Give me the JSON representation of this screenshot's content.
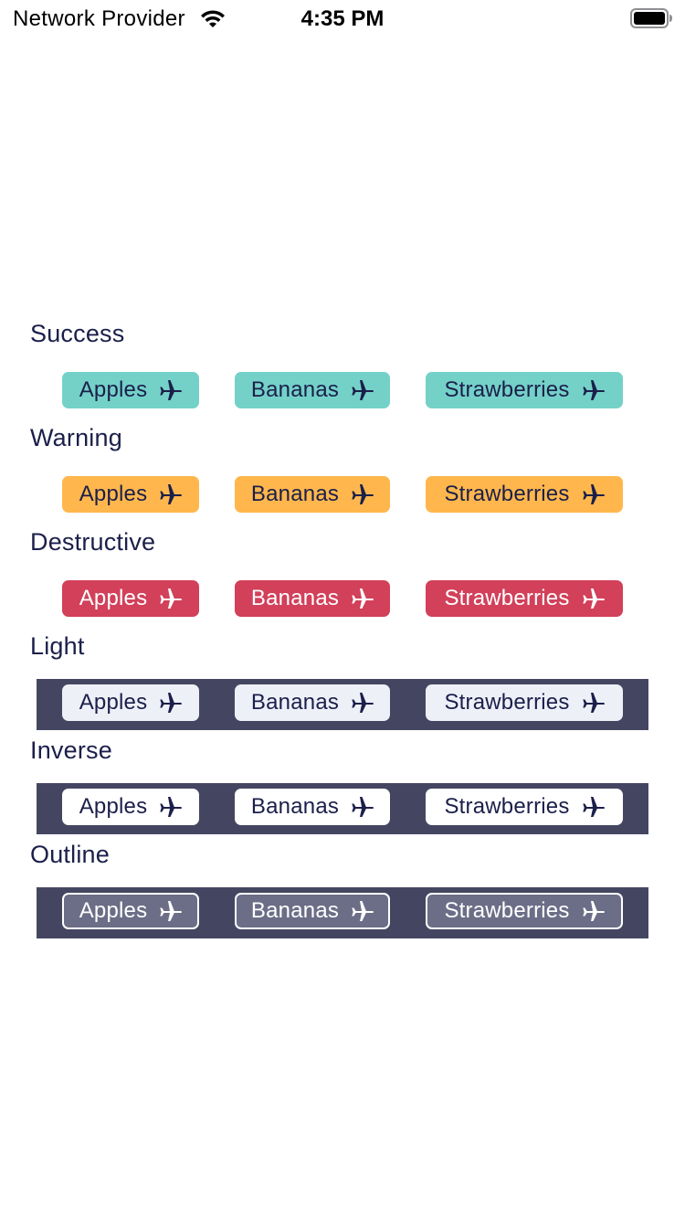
{
  "status_bar": {
    "provider": "Network Provider",
    "time": "4:35 PM",
    "wifi_icon": "wifi-icon",
    "battery_icon": "battery-icon"
  },
  "tag_icon": "airplane-icon",
  "sections": [
    {
      "title": "Success",
      "tags": [
        "Apples",
        "Bananas",
        "Strawberries"
      ],
      "color": "#74d1c8"
    },
    {
      "title": "Warning",
      "tags": [
        "Apples",
        "Bananas",
        "Strawberries"
      ],
      "color": "#ffb74d"
    },
    {
      "title": "Destructive",
      "tags": [
        "Apples",
        "Bananas",
        "Strawberries"
      ],
      "color": "#d2405a"
    },
    {
      "title": "Light",
      "tags": [
        "Apples",
        "Bananas",
        "Strawberries"
      ],
      "color": "#eef0f8",
      "background": "#444661"
    },
    {
      "title": "Inverse",
      "tags": [
        "Apples",
        "Bananas",
        "Strawberries"
      ],
      "color": "#ffffff",
      "background": "#444661"
    },
    {
      "title": "Outline",
      "tags": [
        "Apples",
        "Bananas",
        "Strawberries"
      ],
      "color": "#6c6e87",
      "background": "#444661"
    }
  ]
}
